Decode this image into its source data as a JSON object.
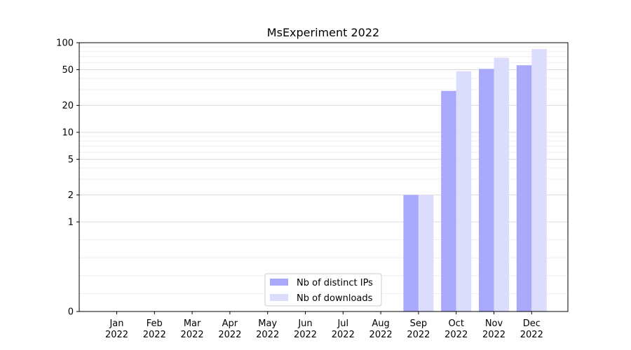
{
  "chart_data": {
    "type": "bar",
    "title": "MsExperiment 2022",
    "xlabel": "",
    "ylabel": "",
    "yscale": "symlog",
    "ylim": [
      0,
      100
    ],
    "yticks": [
      0,
      1,
      2,
      5,
      10,
      20,
      50,
      100
    ],
    "ytick_labels": [
      "0",
      "1",
      "2",
      "5",
      "10",
      "20",
      "50",
      "100"
    ],
    "grid": true,
    "legend_position": "lower center",
    "categories": [
      [
        "Jan",
        "2022"
      ],
      [
        "Feb",
        "2022"
      ],
      [
        "Mar",
        "2022"
      ],
      [
        "Apr",
        "2022"
      ],
      [
        "May",
        "2022"
      ],
      [
        "Jun",
        "2022"
      ],
      [
        "Jul",
        "2022"
      ],
      [
        "Aug",
        "2022"
      ],
      [
        "Sep",
        "2022"
      ],
      [
        "Oct",
        "2022"
      ],
      [
        "Nov",
        "2022"
      ],
      [
        "Dec",
        "2022"
      ]
    ],
    "series": [
      {
        "name": "Nb of distinct IPs",
        "color": "#a9a9fb",
        "values": [
          0,
          0,
          0,
          0,
          0,
          0,
          0,
          0,
          2,
          29,
          51,
          56
        ]
      },
      {
        "name": "Nb of downloads",
        "color": "#dcdcfc",
        "values": [
          0,
          0,
          0,
          0,
          0,
          0,
          0,
          0,
          2,
          48,
          68,
          85
        ]
      }
    ]
  }
}
